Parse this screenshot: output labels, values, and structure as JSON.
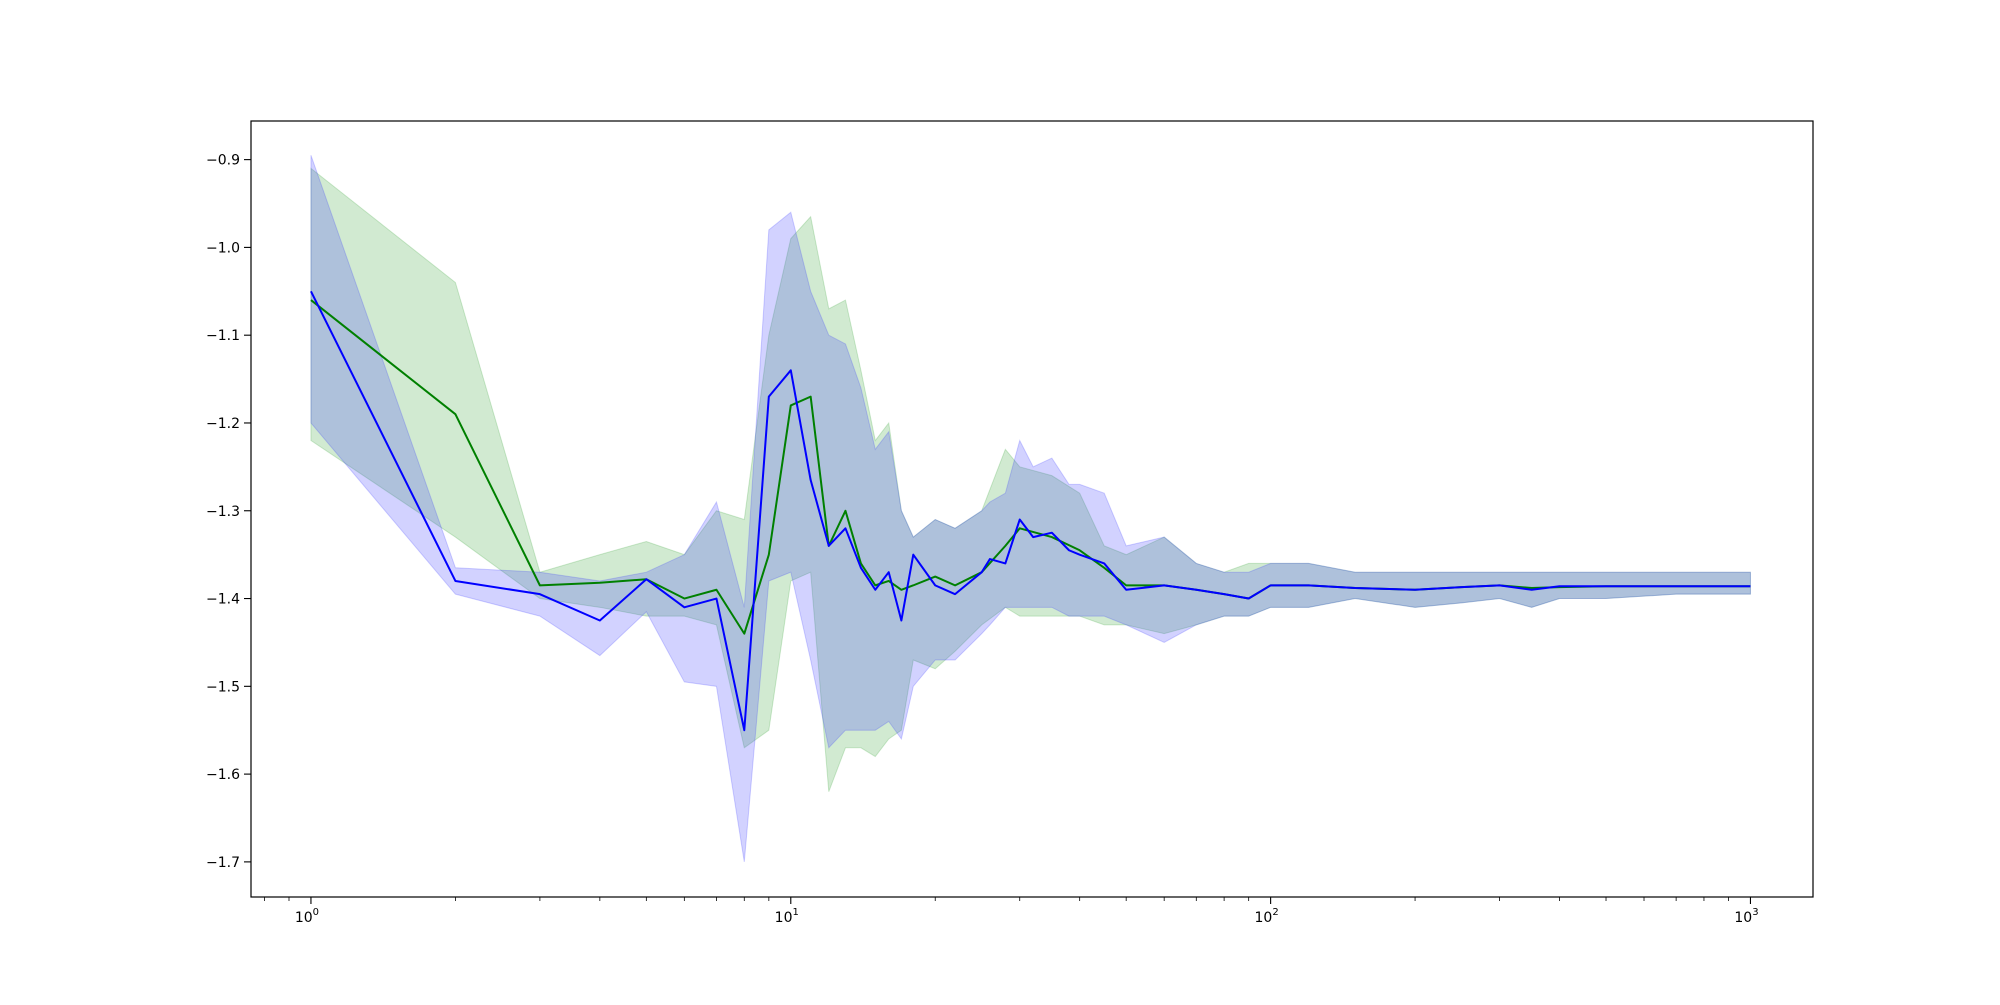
{
  "chart_data": {
    "type": "line",
    "title": "",
    "xlabel": "",
    "ylabel": "",
    "xscale": "log",
    "xlim": [
      0.75,
      1350
    ],
    "ylim": [
      -1.74,
      -0.856
    ],
    "grid": false,
    "x_ticks": [
      {
        "value": 1,
        "base": "10",
        "exp": "0"
      },
      {
        "value": 10,
        "base": "10",
        "exp": "1"
      },
      {
        "value": 100,
        "base": "10",
        "exp": "2"
      },
      {
        "value": 1000,
        "base": "10",
        "exp": "3"
      }
    ],
    "y_ticks": [
      {
        "value": -0.9,
        "label": "−0.9"
      },
      {
        "value": -1.0,
        "label": "−1.0"
      },
      {
        "value": -1.1,
        "label": "−1.1"
      },
      {
        "value": -1.2,
        "label": "−1.2"
      },
      {
        "value": -1.3,
        "label": "−1.3"
      },
      {
        "value": -1.4,
        "label": "−1.4"
      },
      {
        "value": -1.5,
        "label": "−1.5"
      },
      {
        "value": -1.6,
        "label": "−1.6"
      },
      {
        "value": -1.7,
        "label": "−1.7"
      }
    ],
    "series": [
      {
        "color": "#008000",
        "band_color": "#2ca02c",
        "band_opacity": 0.22,
        "x": [
          1,
          2,
          3,
          4,
          5,
          6,
          7,
          8,
          9,
          10,
          11,
          12,
          13,
          14,
          15,
          16,
          17,
          18,
          20,
          22,
          25,
          28,
          30,
          35,
          40,
          45,
          50,
          60,
          70,
          80,
          90,
          100,
          120,
          150,
          200,
          250,
          300,
          350,
          400,
          500,
          700,
          1000
        ],
        "mean": [
          -1.06,
          -1.19,
          -1.385,
          -1.382,
          -1.378,
          -1.4,
          -1.39,
          -1.44,
          -1.35,
          -1.18,
          -1.17,
          -1.34,
          -1.3,
          -1.36,
          -1.385,
          -1.38,
          -1.39,
          -1.385,
          -1.375,
          -1.385,
          -1.37,
          -1.34,
          -1.32,
          -1.33,
          -1.345,
          -1.365,
          -1.385,
          -1.385,
          -1.39,
          -1.395,
          -1.4,
          -1.385,
          -1.385,
          -1.388,
          -1.39,
          -1.387,
          -1.385,
          -1.388,
          -1.387,
          -1.386,
          -1.386,
          -1.386
        ],
        "lower": [
          -1.22,
          -1.33,
          -1.4,
          -1.41,
          -1.42,
          -1.42,
          -1.43,
          -1.57,
          -1.55,
          -1.38,
          -1.37,
          -1.62,
          -1.57,
          -1.57,
          -1.58,
          -1.56,
          -1.55,
          -1.47,
          -1.48,
          -1.46,
          -1.43,
          -1.41,
          -1.42,
          -1.42,
          -1.42,
          -1.43,
          -1.43,
          -1.44,
          -1.43,
          -1.42,
          -1.42,
          -1.41,
          -1.41,
          -1.4,
          -1.41,
          -1.405,
          -1.4,
          -1.41,
          -1.4,
          -1.4,
          -1.395,
          -1.395
        ],
        "upper": [
          -0.91,
          -1.04,
          -1.37,
          -1.35,
          -1.335,
          -1.35,
          -1.3,
          -1.31,
          -1.1,
          -0.99,
          -0.965,
          -1.07,
          -1.06,
          -1.14,
          -1.22,
          -1.2,
          -1.3,
          -1.33,
          -1.31,
          -1.32,
          -1.3,
          -1.23,
          -1.25,
          -1.26,
          -1.28,
          -1.34,
          -1.35,
          -1.33,
          -1.36,
          -1.37,
          -1.36,
          -1.36,
          -1.36,
          -1.37,
          -1.37,
          -1.37,
          -1.37,
          -1.37,
          -1.37,
          -1.37,
          -1.37,
          -1.37
        ]
      },
      {
        "color": "#0000ff",
        "band_color": "#3333ff",
        "band_opacity": 0.22,
        "x": [
          1,
          2,
          3,
          4,
          5,
          6,
          7,
          8,
          9,
          10,
          11,
          12,
          13,
          14,
          15,
          16,
          17,
          18,
          20,
          22,
          25,
          26,
          28,
          30,
          32,
          35,
          38,
          40,
          45,
          50,
          60,
          70,
          80,
          90,
          100,
          120,
          150,
          200,
          250,
          300,
          350,
          400,
          500,
          700,
          1000
        ],
        "mean": [
          -1.05,
          -1.38,
          -1.395,
          -1.425,
          -1.378,
          -1.41,
          -1.4,
          -1.55,
          -1.17,
          -1.14,
          -1.265,
          -1.34,
          -1.32,
          -1.365,
          -1.39,
          -1.37,
          -1.425,
          -1.35,
          -1.385,
          -1.395,
          -1.37,
          -1.355,
          -1.36,
          -1.31,
          -1.33,
          -1.325,
          -1.345,
          -1.35,
          -1.36,
          -1.39,
          -1.385,
          -1.39,
          -1.395,
          -1.4,
          -1.385,
          -1.385,
          -1.388,
          -1.39,
          -1.387,
          -1.385,
          -1.39,
          -1.386,
          -1.386,
          -1.386,
          -1.386
        ],
        "lower": [
          -1.2,
          -1.395,
          -1.42,
          -1.465,
          -1.415,
          -1.495,
          -1.5,
          -1.7,
          -1.38,
          -1.37,
          -1.47,
          -1.57,
          -1.55,
          -1.55,
          -1.55,
          -1.54,
          -1.56,
          -1.5,
          -1.47,
          -1.47,
          -1.44,
          -1.43,
          -1.41,
          -1.41,
          -1.41,
          -1.41,
          -1.42,
          -1.42,
          -1.42,
          -1.43,
          -1.45,
          -1.43,
          -1.42,
          -1.42,
          -1.41,
          -1.41,
          -1.4,
          -1.41,
          -1.405,
          -1.4,
          -1.41,
          -1.4,
          -1.4,
          -1.395,
          -1.395
        ],
        "upper": [
          -0.895,
          -1.365,
          -1.37,
          -1.38,
          -1.37,
          -1.35,
          -1.29,
          -1.41,
          -0.98,
          -0.96,
          -1.05,
          -1.1,
          -1.11,
          -1.16,
          -1.23,
          -1.21,
          -1.3,
          -1.33,
          -1.31,
          -1.32,
          -1.3,
          -1.29,
          -1.28,
          -1.22,
          -1.25,
          -1.24,
          -1.27,
          -1.27,
          -1.28,
          -1.34,
          -1.33,
          -1.36,
          -1.37,
          -1.37,
          -1.36,
          -1.36,
          -1.37,
          -1.37,
          -1.37,
          -1.37,
          -1.37,
          -1.37,
          -1.37,
          -1.37,
          -1.37
        ]
      }
    ]
  }
}
